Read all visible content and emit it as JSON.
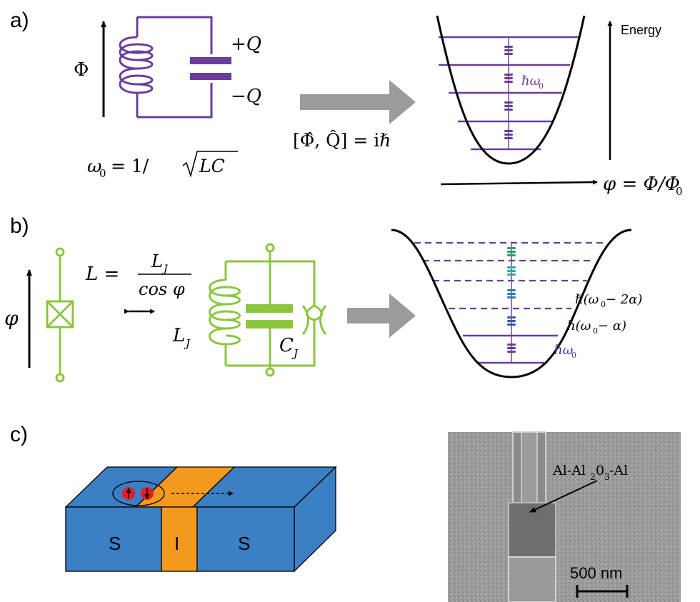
{
  "panels": {
    "a": {
      "label": "a)",
      "flux_label": "Φ",
      "charge_plus": "+Q",
      "charge_minus": "−Q",
      "freq_lhs": "ω",
      "freq_sub": "0",
      "freq_rhs": "= 1/",
      "freq_radicand": "LC",
      "commutator": "[Φ̂, Q̂] = iℏ",
      "energy_label": "Energy",
      "phase_label": "φ = Φ/Φ",
      "phase_sub": "0",
      "level_label": "ℏω",
      "level_sub": "0"
    },
    "b": {
      "label": "b)",
      "phase_label": "φ",
      "L_label": "L =",
      "L_num": "L",
      "L_num_sub": "J",
      "L_den": "cos φ",
      "LJ_label": "L",
      "LJ_sub": "J",
      "CJ_label": "C",
      "CJ_sub": "J",
      "level1": "ℏω",
      "level1_sub": "0",
      "level2": "ℏ(ω",
      "level2_sub": "0",
      "level2_tail": " − α)",
      "level3": "ℏ(ω",
      "level3_sub": "0",
      "level3_tail": " − 2α)"
    },
    "c": {
      "label": "c)",
      "left_S": "S",
      "insulator": "I",
      "right_S": "S",
      "sem_label_a": "Al-Al",
      "sem_label_sub1": "2",
      "sem_label_b": "0",
      "sem_label_sub2": "3",
      "sem_label_c": "-Al",
      "scale_label": "500 nm"
    }
  },
  "colors": {
    "lc_purple": "#6a3d9a",
    "junction_green": "#8cc63f",
    "arrow_gray": "#9b9b9b",
    "block_blue": "#3b7fc4",
    "insulator_orange": "#f39a1e",
    "cooper_red": "#e81c24"
  }
}
